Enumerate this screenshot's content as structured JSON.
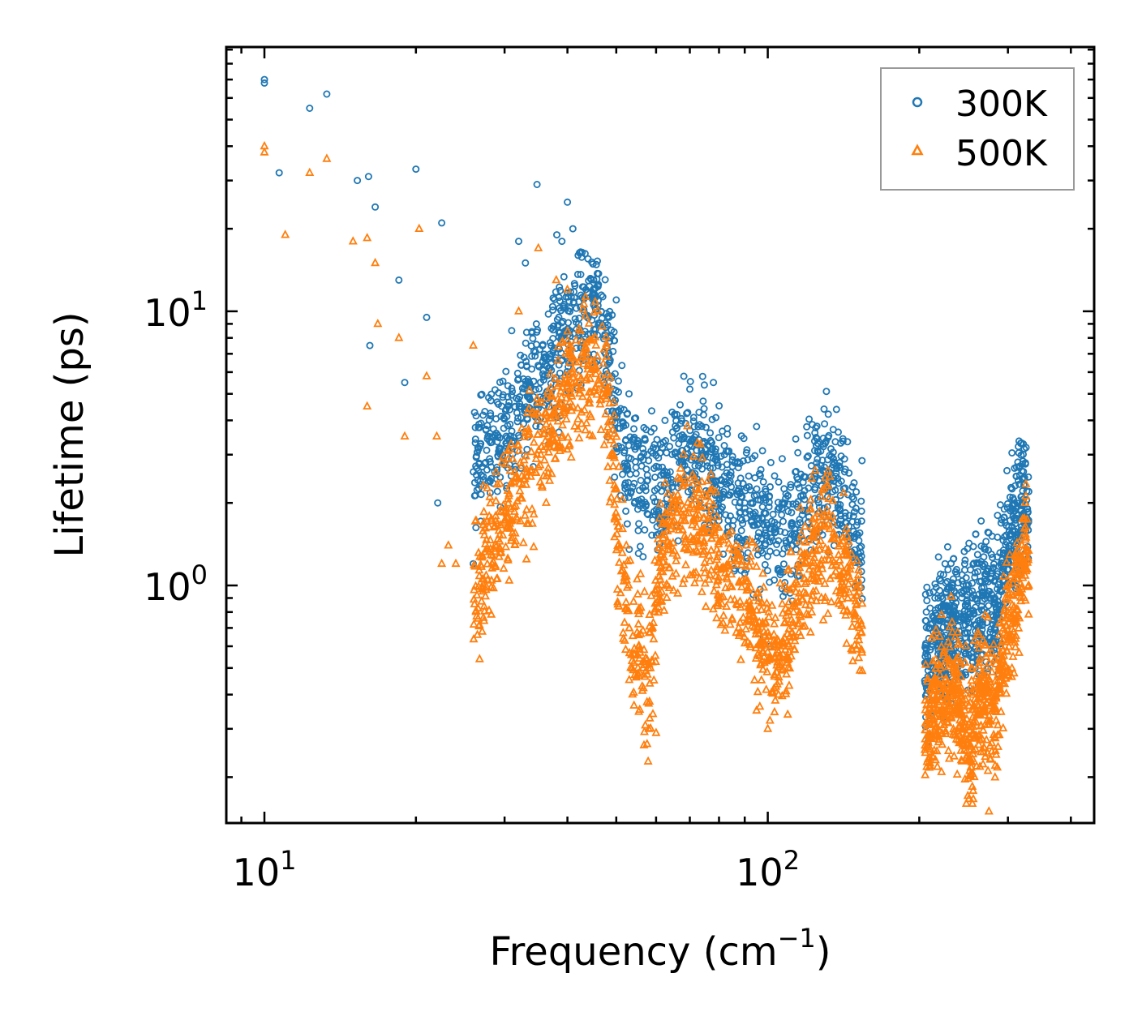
{
  "chart_data": {
    "type": "scatter",
    "title": "",
    "xlabel": "Frequency (cm",
    "xlabel_sup": "−1",
    "xlabel_close": ")",
    "ylabel": "Lifetime (ps)",
    "xscale": "log",
    "yscale": "log",
    "xlim": [
      8.4,
      445
    ],
    "ylim": [
      0.136,
      92
    ],
    "x_ticks": [
      {
        "value": 10,
        "base": "10",
        "exp": "1"
      },
      {
        "value": 100,
        "base": "10",
        "exp": "2"
      }
    ],
    "y_ticks": [
      {
        "value": 1,
        "base": "10",
        "exp": "0"
      },
      {
        "value": 10,
        "base": "10",
        "exp": "1"
      }
    ],
    "legend_position": "top-right",
    "series": [
      {
        "name": "300K",
        "marker": "circle",
        "color": "#1f77b4",
        "x": [
          10.0,
          10.0,
          10.7,
          12.3,
          13.3,
          15.3,
          16.1,
          16.2,
          16.6,
          18.5,
          19.0,
          20.0,
          21.0,
          22.5,
          22.1,
          26.0,
          27.8,
          31.0,
          32.0,
          33.0,
          34.8,
          38.1,
          39.0,
          40.0,
          41.0,
          42.0,
          43.5,
          46.0,
          50.0,
          53.0,
          62.5,
          66.0,
          70.0,
          73.0,
          78.0,
          82.0,
          86.0,
          90.0,
          95.0,
          99.0,
          101.0,
          103.0,
          108.0,
          112.0,
          118.0,
          125.0,
          130.0,
          135.0,
          140.0,
          145.0,
          148.0,
          152.0,
          96.0,
          80.0,
          98.0,
          205.0,
          210.0,
          218.0,
          225.0,
          233.0,
          240.0,
          248.0,
          255.0,
          262.0,
          270.0,
          278.0,
          286.0,
          295.0,
          303.0,
          312.0,
          318.0,
          325.0,
          330.0
        ],
        "y": [
          70.0,
          68.0,
          32.0,
          55.0,
          62.0,
          30.0,
          31.0,
          7.5,
          24.0,
          13.0,
          5.5,
          33.0,
          9.5,
          21.0,
          2.0,
          1.2,
          3.5,
          8.5,
          18.0,
          15.0,
          29.0,
          19.0,
          18.0,
          25.0,
          20.0,
          16.0,
          12.0,
          10.5,
          11.0,
          5.0,
          4.0,
          4.2,
          5.2,
          3.4,
          5.5,
          3.0,
          2.8,
          2.0,
          3.8,
          2.2,
          0.6,
          1.6,
          2.0,
          1.4,
          2.5,
          2.8,
          3.3,
          2.9,
          2.4,
          1.8,
          1.3,
          1.2,
          0.9,
          1.8,
          0.65,
          0.45,
          0.7,
          0.9,
          1.2,
          1.0,
          0.75,
          1.0,
          0.9,
          0.8,
          1.1,
          1.3,
          1.5,
          1.9,
          2.1,
          2.5,
          3.3,
          2.8,
          2.2
        ],
        "band_center_x": [
          26,
          27,
          28,
          29,
          30,
          31,
          32,
          33,
          34,
          35,
          36,
          37,
          38,
          39,
          40,
          41,
          42,
          43,
          44,
          45,
          46,
          47,
          48,
          49,
          50,
          51,
          52,
          53,
          54,
          55,
          56,
          57,
          58,
          59,
          60,
          62,
          64,
          66,
          68,
          70,
          73,
          76,
          80,
          84,
          88,
          92,
          96,
          100,
          104,
          108,
          112,
          116,
          120,
          125,
          130,
          135,
          140,
          145,
          150,
          154,
          205,
          210,
          215,
          220,
          225,
          230,
          235,
          240,
          245,
          250,
          255,
          260,
          265,
          270,
          275,
          280,
          285,
          290,
          295,
          300,
          305,
          310,
          315,
          320,
          325,
          330
        ],
        "band_center_y": [
          2.8,
          3.0,
          3.2,
          3.4,
          3.6,
          3.9,
          4.2,
          4.6,
          5.0,
          5.5,
          6.0,
          6.5,
          7.0,
          7.5,
          8.0,
          8.5,
          9.0,
          9.5,
          10.0,
          10.5,
          10.0,
          9.0,
          7.5,
          6.0,
          4.5,
          3.5,
          2.9,
          2.6,
          2.4,
          2.3,
          2.2,
          2.4,
          2.6,
          2.7,
          2.5,
          2.3,
          2.6,
          3.0,
          3.2,
          3.1,
          3.0,
          2.8,
          2.5,
          2.2,
          2.0,
          1.9,
          1.8,
          1.6,
          1.5,
          1.4,
          1.6,
          1.9,
          2.2,
          2.5,
          2.7,
          2.6,
          2.3,
          1.9,
          1.6,
          1.4,
          0.5,
          0.55,
          0.6,
          0.66,
          0.7,
          0.75,
          0.72,
          0.7,
          0.75,
          0.8,
          0.78,
          0.76,
          0.82,
          0.9,
          0.85,
          0.8,
          0.9,
          1.0,
          1.15,
          1.3,
          1.45,
          1.6,
          1.8,
          2.0,
          2.3,
          2.0
        ]
      },
      {
        "name": "500K",
        "marker": "triangle",
        "color": "#ff7f0e",
        "x": [
          10.0,
          10.0,
          11.0,
          12.3,
          13.3,
          15.0,
          16.0,
          16.0,
          16.6,
          16.8,
          18.5,
          19.0,
          20.3,
          21.0,
          22.5,
          22.0,
          23.2,
          24.0,
          26.0,
          32.0,
          35.0,
          38.0,
          40.0,
          58.0,
          60.0,
          80.0,
          95.0,
          100.0,
          105.0,
          110.0,
          118.0,
          129.0,
          140.0,
          148.0,
          152.0,
          210.0,
          248.0,
          255.0,
          275.0,
          300.0,
          320.0,
          330.0
        ],
        "y": [
          40.0,
          38.0,
          19.0,
          32.0,
          36.0,
          18.0,
          18.5,
          4.5,
          15.0,
          9.0,
          8.0,
          3.5,
          20.0,
          5.8,
          1.2,
          3.5,
          1.4,
          1.2,
          7.5,
          10.0,
          17.0,
          13.0,
          12.0,
          0.3,
          0.29,
          0.9,
          0.35,
          0.3,
          0.4,
          0.6,
          1.2,
          1.8,
          1.1,
          0.8,
          0.7,
          0.22,
          0.16,
          0.16,
          0.15,
          0.8,
          1.5,
          1.0
        ],
        "band_center_x": [
          26,
          27,
          28,
          29,
          30,
          31,
          32,
          33,
          34,
          35,
          36,
          37,
          38,
          39,
          40,
          41,
          42,
          43,
          44,
          45,
          46,
          47,
          48,
          49,
          50,
          51,
          52,
          53,
          54,
          55,
          56,
          57,
          58,
          59,
          60,
          62,
          64,
          66,
          68,
          70,
          73,
          76,
          80,
          84,
          88,
          92,
          96,
          100,
          104,
          108,
          112,
          116,
          120,
          125,
          130,
          135,
          140,
          145,
          150,
          154,
          205,
          210,
          215,
          220,
          225,
          230,
          235,
          240,
          245,
          250,
          255,
          260,
          265,
          270,
          275,
          280,
          285,
          290,
          295,
          300,
          305,
          310,
          315,
          320,
          325,
          330
        ],
        "band_center_y": [
          0.9,
          1.1,
          1.4,
          1.6,
          1.8,
          2.0,
          2.2,
          2.5,
          2.8,
          3.1,
          3.4,
          3.8,
          4.2,
          4.6,
          5.0,
          5.3,
          5.6,
          5.8,
          6.0,
          6.2,
          6.0,
          5.5,
          4.5,
          3.2,
          2.0,
          1.3,
          0.9,
          0.75,
          0.65,
          0.6,
          0.55,
          0.5,
          0.45,
          0.6,
          0.9,
          1.3,
          1.6,
          1.8,
          2.0,
          1.9,
          1.7,
          1.5,
          1.2,
          1.0,
          0.9,
          0.8,
          0.7,
          0.6,
          0.55,
          0.6,
          0.8,
          1.0,
          1.2,
          1.35,
          1.4,
          1.3,
          1.15,
          1.0,
          0.85,
          0.75,
          0.27,
          0.3,
          0.35,
          0.4,
          0.42,
          0.45,
          0.4,
          0.35,
          0.3,
          0.28,
          0.3,
          0.35,
          0.4,
          0.45,
          0.38,
          0.35,
          0.4,
          0.5,
          0.6,
          0.7,
          0.8,
          0.9,
          1.0,
          1.2,
          1.3,
          1.0
        ]
      }
    ]
  }
}
